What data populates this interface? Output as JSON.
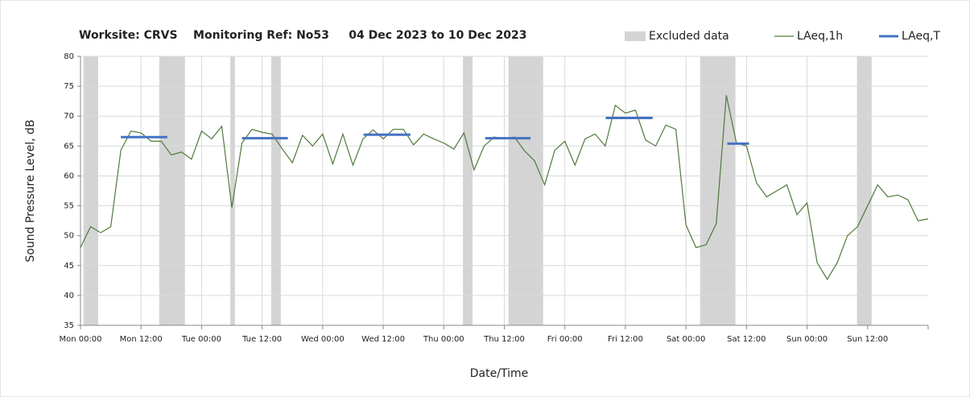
{
  "chart_data": {
    "type": "line",
    "title": "Worksite: CRVS    Monitoring Ref: No53     04 Dec 2023 to 10 Dec 2023",
    "x_label": "Date/Time",
    "y_label": "Sound Pressure Level, dB",
    "xlim": [
      0,
      168
    ],
    "xticks": [
      {
        "value": 0,
        "label": "Mon 00:00"
      },
      {
        "value": 12,
        "label": "Mon 12:00"
      },
      {
        "value": 24,
        "label": "Tue 00:00"
      },
      {
        "value": 36,
        "label": "Tue 12:00"
      },
      {
        "value": 48,
        "label": "Wed 00:00"
      },
      {
        "value": 60,
        "label": "Wed 12:00"
      },
      {
        "value": 72,
        "label": "Thu 00:00"
      },
      {
        "value": 84,
        "label": "Thu 12:00"
      },
      {
        "value": 96,
        "label": "Fri 00:00"
      },
      {
        "value": 108,
        "label": "Fri 12:00"
      },
      {
        "value": 120,
        "label": "Sat 00:00"
      },
      {
        "value": 132,
        "label": "Sat 12:00"
      },
      {
        "value": 144,
        "label": "Sun 00:00"
      },
      {
        "value": 156,
        "label": "Sun 12:00"
      }
    ],
    "ylim": [
      35,
      80
    ],
    "yticks": [
      35,
      40,
      45,
      50,
      55,
      60,
      65,
      70,
      75,
      80
    ],
    "grid": true,
    "x": [
      0,
      2,
      4,
      6,
      8,
      10,
      12,
      14,
      16,
      18,
      20,
      22,
      24,
      26,
      28,
      30,
      32,
      34,
      36,
      38,
      40,
      42,
      44,
      46,
      48,
      50,
      52,
      54,
      56,
      58,
      60,
      62,
      64,
      66,
      68,
      70,
      72,
      74,
      76,
      78,
      80,
      82,
      84,
      86,
      88,
      90,
      92,
      94,
      96,
      98,
      100,
      102,
      104,
      106,
      108,
      110,
      112,
      114,
      116,
      118,
      120,
      122,
      124,
      126,
      128,
      130,
      132,
      134,
      136,
      138,
      140,
      142,
      144,
      146,
      148,
      150,
      152,
      154,
      156,
      158,
      160,
      162,
      164,
      166,
      168
    ],
    "series": [
      {
        "name": "LAeq,1h",
        "color": "#4f7a3a",
        "values": [
          48,
          51.5,
          50.5,
          51.5,
          64.3,
          67.5,
          67.2,
          65.8,
          65.8,
          63.5,
          64,
          62.8,
          67.5,
          66.2,
          68.3,
          54.7,
          65.5,
          67.8,
          67.3,
          67,
          64.5,
          62.2,
          66.8,
          65,
          67,
          62,
          67,
          61.8,
          66.2,
          67.7,
          66.2,
          67.8,
          67.8,
          65.2,
          67,
          66.2,
          65.5,
          64.5,
          67.2,
          61,
          65,
          66.5,
          66.2,
          66.5,
          64.2,
          62.5,
          58.5,
          64.3,
          65.8,
          61.8,
          66.2,
          67,
          65,
          71.8,
          70.5,
          71,
          66,
          65,
          68.5,
          67.8,
          51.8,
          48,
          48.5,
          52,
          73.5,
          65.5,
          65,
          58.8,
          56.5,
          57.5,
          58.5,
          53.5,
          55.5,
          45.5,
          42.7,
          45.5,
          50,
          51.5,
          55,
          58.5,
          56.5,
          56.8,
          56,
          52.5,
          52.8
        ]
      }
    ],
    "excluded": {
      "name": "Excluded data",
      "color": "#d4d4d4",
      "ranges": [
        [
          0.6,
          3.5
        ],
        [
          15.6,
          20.7
        ],
        [
          29.7,
          30.6
        ],
        [
          37.8,
          39.7
        ],
        [
          75.8,
          77.7
        ],
        [
          84.8,
          91.7
        ],
        [
          122.8,
          129.8
        ],
        [
          153.9,
          156.8
        ]
      ]
    },
    "laeq_t": {
      "name": "LAeq,T",
      "color": "#4472c4",
      "segments": [
        {
          "x": [
            8,
            17.2
          ],
          "value": 66.5
        },
        {
          "x": [
            32,
            41.1
          ],
          "value": 66.3
        },
        {
          "x": [
            56.1,
            65.4
          ],
          "value": 66.9
        },
        {
          "x": [
            80.2,
            89.2
          ],
          "value": 66.3
        },
        {
          "x": [
            104.1,
            113.4
          ],
          "value": 69.7
        },
        {
          "x": [
            128.2,
            132.5
          ],
          "value": 65.4
        }
      ]
    }
  }
}
